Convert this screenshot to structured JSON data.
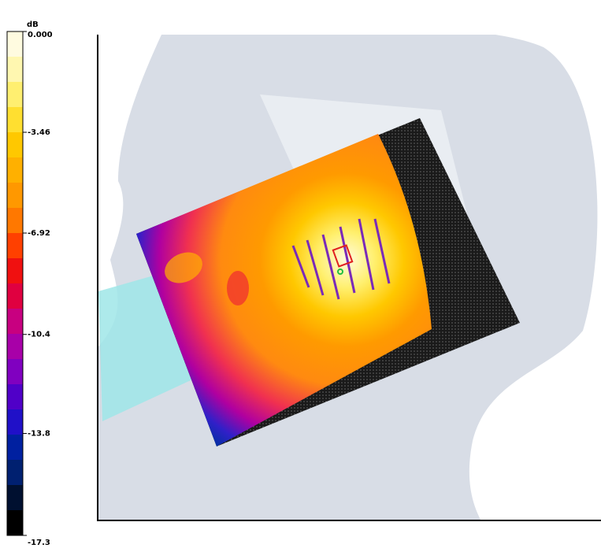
{
  "colorbar": {
    "unit": "dB",
    "ticks": [
      {
        "value": 0,
        "label": "0.000"
      },
      -3.46,
      -6.92,
      -10.4,
      -13.8,
      -17.3
    ],
    "colors": [
      "#fffbe0",
      "#fff7b0",
      "#ffef70",
      "#ffdf30",
      "#ffc800",
      "#ffb000",
      "#ff9800",
      "#ff7800",
      "#ff4000",
      "#f01010",
      "#e00040",
      "#c80080",
      "#a800a8",
      "#8000c0",
      "#5000c8",
      "#2010c8",
      "#0020a0",
      "#002070",
      "#001030",
      "#000000"
    ]
  }
}
